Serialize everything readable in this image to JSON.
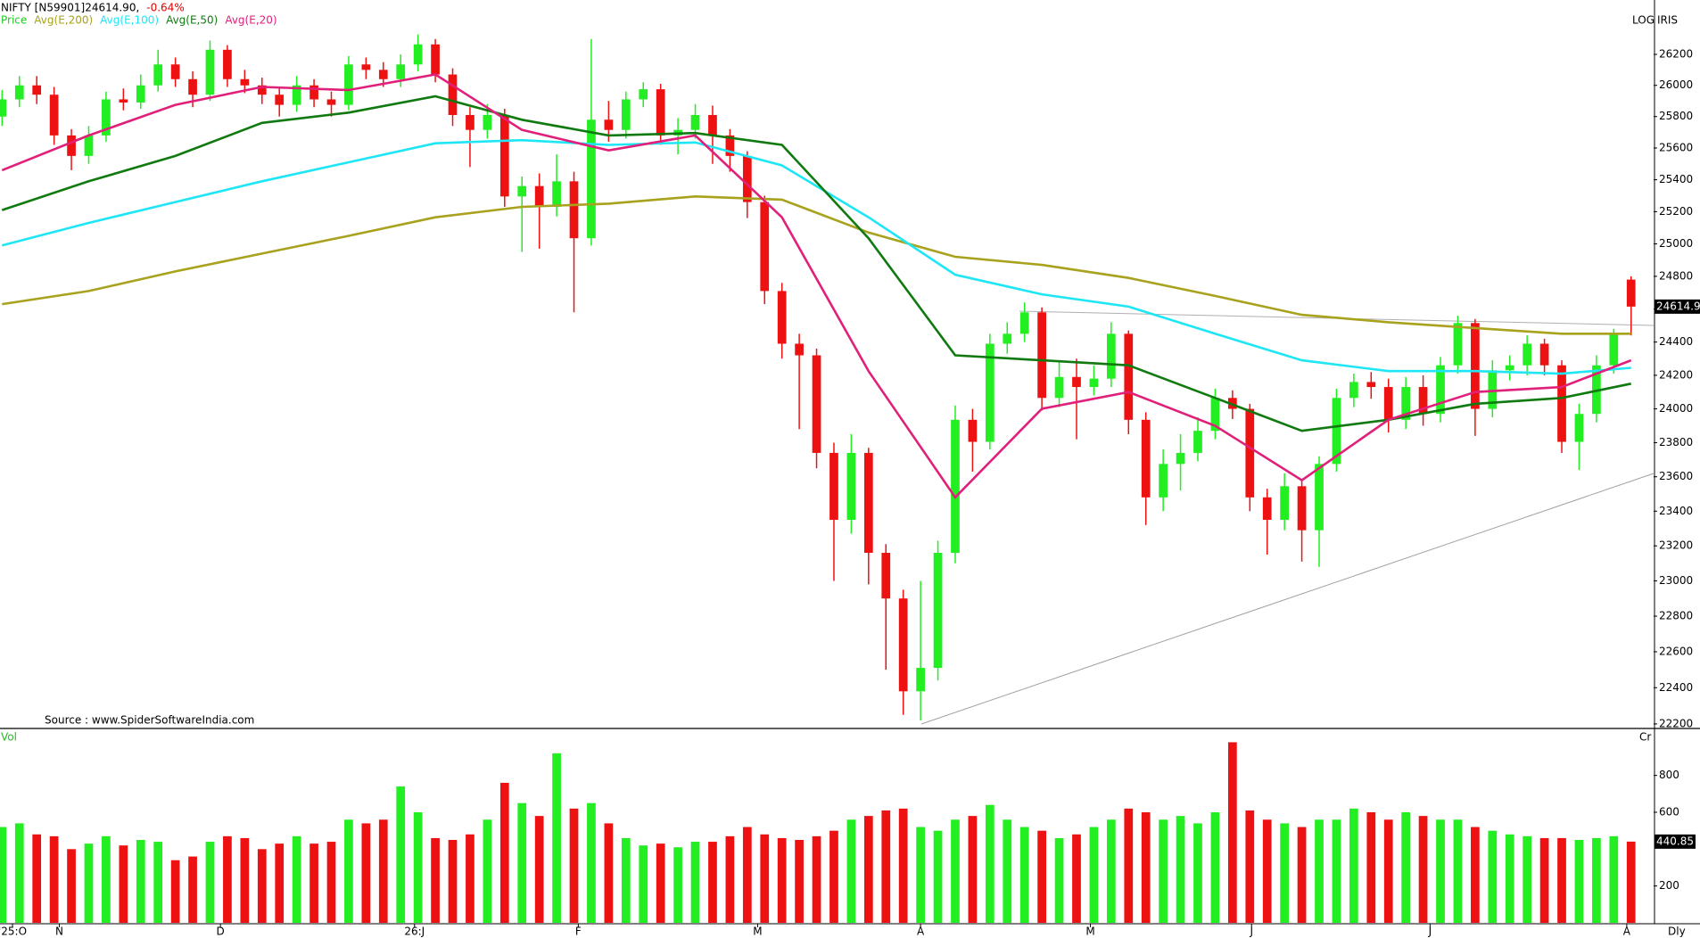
{
  "chart_data": [
    {
      "type": "candlestick",
      "title": "NIFTY [N59901]24614.90,",
      "change": "-0.64%",
      "scale_label": "LOG",
      "brand": "IRIS",
      "source": "Source : www.SpiderSoftwareIndia.com",
      "period": "Dly",
      "log_scale": true,
      "ylim": [
        22180,
        26555
      ],
      "xlim": [
        -0.12,
        95.3
      ],
      "yticks": [
        22200,
        22400,
        22600,
        22800,
        23000,
        23200,
        23400,
        23600,
        23800,
        24000,
        24200,
        24400,
        24600,
        24800,
        25000,
        25200,
        25400,
        25600,
        25800,
        26000,
        26200
      ],
      "xticks": [
        {
          "value": 0.6,
          "label": "'25:O"
        },
        {
          "value": 3.3,
          "label": "N"
        },
        {
          "value": 12.6,
          "label": "D"
        },
        {
          "value": 23.8,
          "label": "26:J"
        },
        {
          "value": 33.25,
          "label": "F"
        },
        {
          "value": 43.6,
          "label": "M"
        },
        {
          "value": 53,
          "label": "A"
        },
        {
          "value": 62.8,
          "label": "M"
        },
        {
          "value": 72.1,
          "label": "J"
        },
        {
          "value": 82.4,
          "label": "J"
        },
        {
          "value": 93.75,
          "label": "A"
        }
      ],
      "candles": {
        "name": "Price",
        "color": "#22cc22",
        "up_color": "#22ee22",
        "down_color": "#ee1111",
        "open": [
          25800,
          25910,
          26000,
          25940,
          25680,
          25550,
          25680,
          25910,
          25890,
          26000,
          26135,
          26040,
          25940,
          26230,
          26040,
          26000,
          25940,
          25875,
          26000,
          25910,
          25875,
          26135,
          26100,
          26040,
          26135,
          26265,
          26070,
          25810,
          25715,
          25810,
          25295,
          25360,
          25230,
          25390,
          25035,
          25780,
          25715,
          25910,
          25975,
          25680,
          25715,
          25810,
          25680,
          25550,
          25260,
          24710,
          24390,
          24320,
          23740,
          23350,
          23740,
          23160,
          22900,
          22380,
          22510,
          23160,
          23935,
          23805,
          24390,
          24450,
          24580,
          24065,
          24190,
          24130,
          24180,
          24450,
          23935,
          23480,
          23675,
          23740,
          23870,
          24065,
          24000,
          23480,
          23350,
          23545,
          23290,
          23675,
          24065,
          24160,
          24130,
          23935,
          24130,
          23970,
          24260,
          24515,
          24000,
          24230,
          24260,
          24390,
          24260,
          23805,
          23970,
          24260,
          24780
        ],
        "high": [
          25970,
          26060,
          26060,
          25990,
          25720,
          25740,
          25960,
          25980,
          26070,
          26230,
          26180,
          26090,
          26290,
          26260,
          26100,
          26050,
          25990,
          26060,
          26040,
          25960,
          26190,
          26180,
          26150,
          26200,
          26330,
          26300,
          26110,
          25860,
          25880,
          25850,
          25420,
          25440,
          25560,
          25450,
          26300,
          25900,
          25960,
          26020,
          26010,
          25790,
          25880,
          25870,
          25720,
          25580,
          25300,
          24760,
          24450,
          24360,
          23800,
          23850,
          23770,
          23210,
          22950,
          23000,
          23230,
          24020,
          24000,
          24450,
          24520,
          24640,
          24610,
          24280,
          24300,
          24260,
          24520,
          24470,
          23980,
          23760,
          23850,
          23950,
          24120,
          24110,
          24030,
          23530,
          23620,
          23580,
          23720,
          24120,
          24210,
          24220,
          24180,
          24190,
          24200,
          24310,
          24560,
          24540,
          24290,
          24320,
          24440,
          24420,
          24290,
          24030,
          24320,
          24480,
          24800
        ],
        "low": [
          25740,
          25860,
          25880,
          25620,
          25460,
          25500,
          25640,
          25840,
          25850,
          25960,
          25990,
          25860,
          25900,
          25990,
          25950,
          25880,
          25800,
          25830,
          25860,
          25800,
          25840,
          26040,
          25990,
          25990,
          26090,
          26020,
          25740,
          25480,
          25660,
          25230,
          24950,
          24970,
          25170,
          24580,
          24990,
          25640,
          25660,
          25860,
          25620,
          25560,
          25660,
          25500,
          25450,
          25160,
          24630,
          24300,
          23880,
          23650,
          23000,
          23270,
          22980,
          22500,
          22250,
          22220,
          22440,
          23100,
          23630,
          23760,
          24330,
          24400,
          23990,
          24010,
          23820,
          24080,
          24130,
          23850,
          23320,
          23400,
          23520,
          23690,
          23820,
          23940,
          23400,
          23150,
          23290,
          23110,
          23080,
          23630,
          24010,
          24060,
          23860,
          23880,
          23900,
          23920,
          24210,
          23840,
          23950,
          24170,
          24200,
          24200,
          23740,
          23640,
          23920,
          24210,
          24440
        ],
        "close": [
          25910,
          26000,
          25940,
          25680,
          25550,
          25680,
          25910,
          25890,
          26000,
          26135,
          26040,
          25940,
          26230,
          26040,
          26000,
          25940,
          25875,
          26000,
          25910,
          25875,
          26135,
          26100,
          26040,
          26135,
          26265,
          26070,
          25810,
          25715,
          25810,
          25295,
          25360,
          25230,
          25390,
          25035,
          25780,
          25715,
          25910,
          25975,
          25680,
          25715,
          25810,
          25680,
          25550,
          25260,
          24710,
          24390,
          24320,
          23740,
          23350,
          23740,
          23160,
          22900,
          22380,
          22510,
          23160,
          23935,
          23805,
          24390,
          24450,
          24580,
          24065,
          24190,
          24130,
          24180,
          24450,
          23935,
          23480,
          23675,
          23740,
          23870,
          24065,
          24000,
          23480,
          23350,
          23545,
          23290,
          23675,
          24065,
          24160,
          24130,
          23935,
          24130,
          23970,
          24260,
          24515,
          24000,
          24230,
          24260,
          24390,
          24260,
          23805,
          23970,
          24260,
          24450,
          24614.9
        ]
      },
      "ma_x": [
        0,
        5,
        10,
        15,
        20,
        25,
        30,
        35,
        40,
        45,
        50,
        55,
        60,
        65,
        70,
        75,
        80,
        85,
        90,
        94
      ],
      "series": [
        {
          "name": "Avg(E,200)",
          "color": "#a8a21e",
          "values": [
            24630,
            24710,
            24830,
            24940,
            25050,
            25165,
            25230,
            25250,
            25295,
            25275,
            25070,
            24920,
            24870,
            24790,
            24680,
            24565,
            24520,
            24485,
            24450,
            24450
          ]
        },
        {
          "name": "Avg(E,100)",
          "color": "#1ee6f5",
          "values": [
            24990,
            25130,
            25260,
            25390,
            25510,
            25630,
            25650,
            25620,
            25635,
            25490,
            25165,
            24810,
            24690,
            24615,
            24450,
            24290,
            24225,
            24225,
            24210,
            24245
          ]
        },
        {
          "name": "Avg(E,50)",
          "color": "#107a10",
          "values": [
            25210,
            25390,
            25550,
            25760,
            25825,
            25930,
            25780,
            25680,
            25695,
            25620,
            25035,
            24320,
            24290,
            24260,
            24065,
            23870,
            23935,
            24030,
            24065,
            24150
          ]
        },
        {
          "name": "Avg(E,20)",
          "color": "#e0207a",
          "values": [
            25460,
            25680,
            25875,
            25990,
            25970,
            26070,
            25715,
            25585,
            25680,
            25165,
            24225,
            23480,
            24000,
            24100,
            23900,
            23580,
            23935,
            24100,
            24130,
            24290
          ]
        }
      ]
    },
    {
      "type": "bar",
      "title": "Vol",
      "unit_label": "Cr",
      "ylim": [
        0,
        1050
      ],
      "xlim": [
        -0.12,
        95.3
      ],
      "yticks": [
        200,
        600,
        800
      ],
      "values": [
        520,
        540,
        480,
        470,
        400,
        430,
        470,
        420,
        450,
        440,
        340,
        360,
        440,
        470,
        460,
        400,
        430,
        470,
        430,
        440,
        560,
        540,
        560,
        740,
        600,
        460,
        450,
        480,
        560,
        760,
        650,
        580,
        920,
        620,
        650,
        540,
        460,
        420,
        430,
        410,
        440,
        440,
        470,
        520,
        480,
        460,
        450,
        470,
        500,
        560,
        580,
        610,
        620,
        520,
        500,
        560,
        580,
        640,
        560,
        520,
        500,
        460,
        480,
        520,
        560,
        620,
        600,
        560,
        580,
        540,
        600,
        980,
        610,
        560,
        540,
        520,
        560,
        560,
        620,
        600,
        560,
        600,
        580,
        560,
        560,
        520,
        500,
        480,
        470,
        460,
        460,
        450,
        460,
        470,
        440.85
      ]
    }
  ]
}
